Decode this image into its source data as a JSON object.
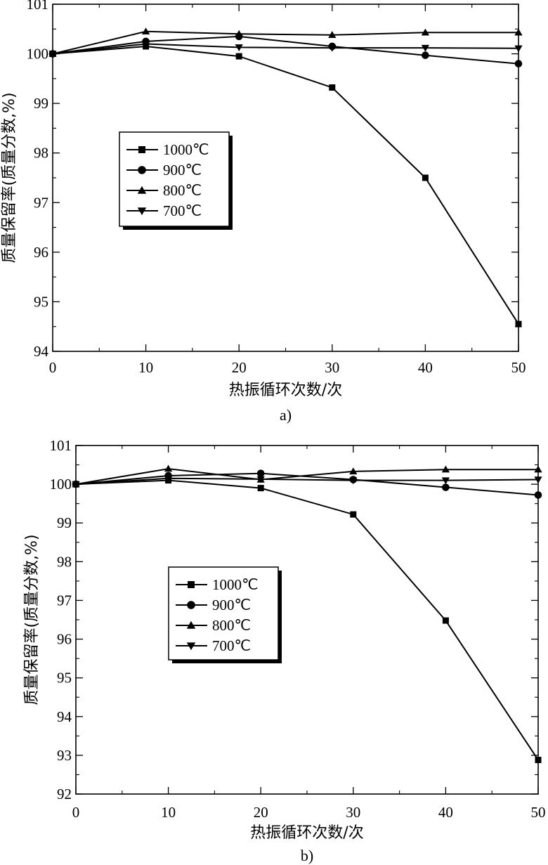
{
  "chart_data": [
    {
      "type": "line",
      "panel": "a",
      "caption": "a)",
      "xlabel": "热振循环次数/次",
      "ylabel": "质量保留率(质量分数,%)",
      "xlim": [
        0,
        50
      ],
      "ylim": [
        94,
        101
      ],
      "xticks": [
        0,
        10,
        20,
        30,
        40,
        50
      ],
      "yticks": [
        94,
        95,
        96,
        97,
        98,
        99,
        100,
        101
      ],
      "x": [
        0,
        10,
        20,
        30,
        40,
        50
      ],
      "legend_position": "center-left",
      "series": [
        {
          "name": "1000℃",
          "marker": "square",
          "values": [
            100.0,
            100.15,
            99.95,
            99.32,
            97.5,
            94.55
          ]
        },
        {
          "name": "900℃",
          "marker": "circle",
          "values": [
            100.0,
            100.25,
            100.35,
            100.15,
            99.97,
            99.8
          ]
        },
        {
          "name": "800℃",
          "marker": "triangle-up",
          "values": [
            100.0,
            100.45,
            100.4,
            100.38,
            100.43,
            100.43
          ]
        },
        {
          "name": "700℃",
          "marker": "triangle-down",
          "values": [
            100.0,
            100.2,
            100.13,
            100.12,
            100.12,
            100.11
          ]
        }
      ]
    },
    {
      "type": "line",
      "panel": "b",
      "caption": "b)",
      "xlabel": "热振循环次数/次",
      "ylabel": "质量保留率(质量分数,%)",
      "xlim": [
        0,
        50
      ],
      "ylim": [
        92,
        101
      ],
      "xticks": [
        0,
        10,
        20,
        30,
        40,
        50
      ],
      "yticks": [
        92,
        93,
        94,
        95,
        96,
        97,
        98,
        99,
        100,
        101
      ],
      "x": [
        0,
        10,
        20,
        30,
        40,
        50
      ],
      "legend_position": "center-left",
      "series": [
        {
          "name": "1000℃",
          "marker": "square",
          "values": [
            100.0,
            100.1,
            99.9,
            99.22,
            96.48,
            92.88
          ]
        },
        {
          "name": "900℃",
          "marker": "circle",
          "values": [
            100.0,
            100.22,
            100.28,
            100.12,
            99.92,
            99.72
          ]
        },
        {
          "name": "800℃",
          "marker": "triangle-up",
          "values": [
            100.0,
            100.4,
            100.12,
            100.33,
            100.38,
            100.38
          ]
        },
        {
          "name": "700℃",
          "marker": "triangle-down",
          "values": [
            100.0,
            100.15,
            100.13,
            100.1,
            100.1,
            100.12
          ]
        }
      ]
    }
  ]
}
